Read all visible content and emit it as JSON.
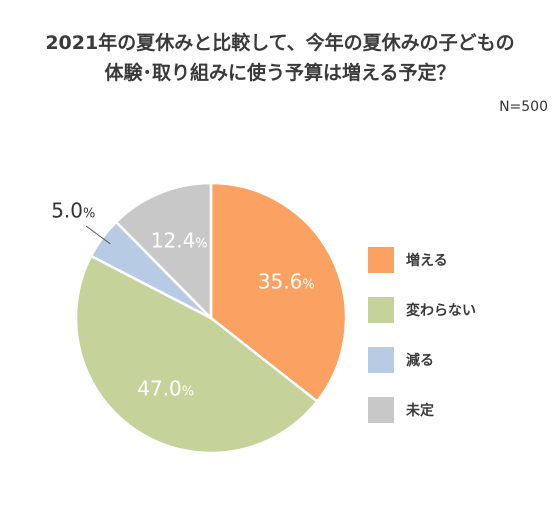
{
  "chart_data": {
    "type": "pie",
    "title_lines": [
      "2021年の夏休みと比較して、今年の夏休みの子どもの",
      "体験･取り組みに使う予算は増える予定？"
    ],
    "sample_note": "N=500",
    "categories": [
      "増える",
      "変わらない",
      "減る",
      "未定"
    ],
    "values": [
      35.6,
      47.0,
      5.0,
      12.4
    ],
    "value_labels": [
      "35.6",
      "47.0",
      "5.0",
      "12.4"
    ],
    "unit": "%",
    "colors": [
      "#FBA162",
      "#C5D39A",
      "#B7CBE4",
      "#C8C8C8"
    ],
    "start_angle": "12 o'clock",
    "direction": "clockwise",
    "legend_position": "right"
  }
}
